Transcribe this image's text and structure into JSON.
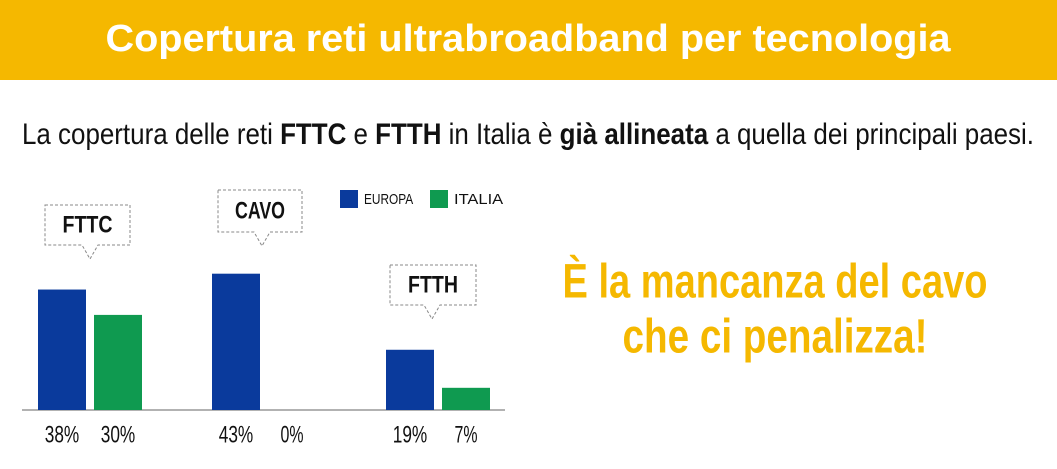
{
  "header": {
    "title": "Copertura reti ultrabroadband per tecnologia"
  },
  "subtitle": [
    {
      "text": "La copertura delle reti ",
      "bold": false
    },
    {
      "text": "FTTC",
      "bold": true
    },
    {
      "text": " e ",
      "bold": false
    },
    {
      "text": "FTTH",
      "bold": true
    },
    {
      "text": " in Italia è ",
      "bold": false
    },
    {
      "text": "già allineata",
      "bold": true
    },
    {
      "text": " a quella dei principali paesi.",
      "bold": false
    }
  ],
  "chart_data": {
    "type": "bar",
    "categories": [
      "FTTC",
      "CAVO",
      "FTTH"
    ],
    "series": [
      {
        "name": "EUROPA",
        "color": "#0a3a9c",
        "values": [
          38,
          43,
          19
        ],
        "value_labels": [
          "38%",
          "43%",
          "19%"
        ]
      },
      {
        "name": "ITALIA",
        "color": "#0f9a50",
        "values": [
          30,
          0,
          7
        ],
        "value_labels": [
          "30%",
          "0%",
          "7%"
        ]
      }
    ]
  },
  "message": {
    "lines": [
      "È la mancanza del cavo",
      "che ci penalizza!"
    ],
    "color": "#f5b800"
  }
}
